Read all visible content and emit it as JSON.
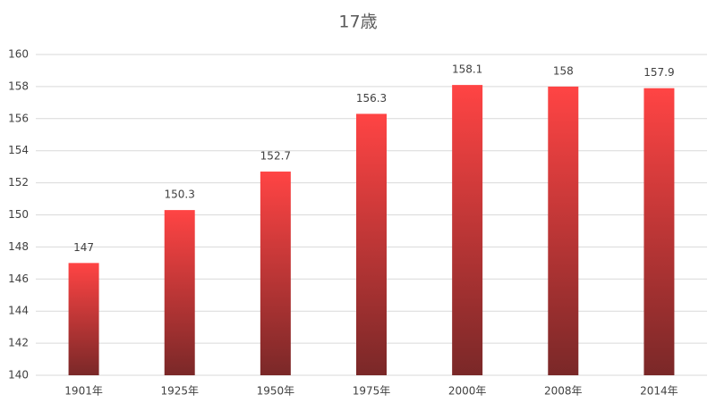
{
  "chart_data": {
    "type": "bar",
    "title": "17歳",
    "categories": [
      "1901年",
      "1925年",
      "1950年",
      "1975年",
      "2000年",
      "2008年",
      "2014年"
    ],
    "values": [
      147,
      150.3,
      152.7,
      156.3,
      158.1,
      158,
      157.9
    ],
    "color": "#ff4444",
    "gradient_end": "#7a2828",
    "ylim": [
      140,
      160
    ],
    "yticks": [
      140,
      142,
      144,
      146,
      148,
      150,
      152,
      154,
      156,
      158,
      160
    ],
    "grid": true
  }
}
